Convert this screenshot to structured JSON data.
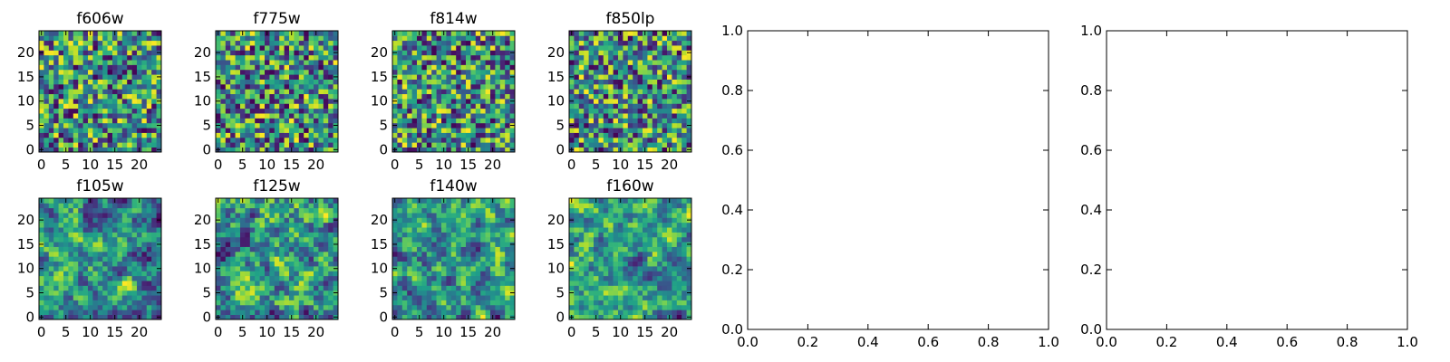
{
  "chart_data": [
    {
      "type": "heatmap",
      "title": "f606w",
      "xticks": [
        "0",
        "5",
        "10",
        "15",
        "20"
      ],
      "yticks": [
        "0",
        "5",
        "10",
        "15",
        "20"
      ],
      "xlim": [
        -0.5,
        24.5
      ],
      "ylim": [
        -0.5,
        24.5
      ],
      "shape": [
        25,
        25
      ],
      "colormap": "viridis",
      "seed": 11
    },
    {
      "type": "heatmap",
      "title": "f775w",
      "xticks": [
        "0",
        "5",
        "10",
        "15",
        "20"
      ],
      "yticks": [
        "0",
        "5",
        "10",
        "15",
        "20"
      ],
      "xlim": [
        -0.5,
        24.5
      ],
      "ylim": [
        -0.5,
        24.5
      ],
      "shape": [
        25,
        25
      ],
      "colormap": "viridis",
      "seed": 23
    },
    {
      "type": "heatmap",
      "title": "f814w",
      "xticks": [
        "0",
        "5",
        "10",
        "15",
        "20"
      ],
      "yticks": [
        "0",
        "5",
        "10",
        "15",
        "20"
      ],
      "xlim": [
        -0.5,
        24.5
      ],
      "ylim": [
        -0.5,
        24.5
      ],
      "shape": [
        25,
        25
      ],
      "colormap": "viridis",
      "seed": 37
    },
    {
      "type": "heatmap",
      "title": "f850lp",
      "xticks": [
        "0",
        "5",
        "10",
        "15",
        "20"
      ],
      "yticks": [
        "0",
        "5",
        "10",
        "15",
        "20"
      ],
      "xlim": [
        -0.5,
        24.5
      ],
      "ylim": [
        -0.5,
        24.5
      ],
      "shape": [
        25,
        25
      ],
      "colormap": "viridis",
      "seed": 41
    },
    {
      "type": "heatmap",
      "title": "f105w",
      "xticks": [
        "0",
        "5",
        "10",
        "15",
        "20"
      ],
      "yticks": [
        "0",
        "5",
        "10",
        "15",
        "20"
      ],
      "xlim": [
        -0.5,
        24.5
      ],
      "ylim": [
        -0.5,
        24.5
      ],
      "shape": [
        25,
        25
      ],
      "colormap": "viridis",
      "seed": 53
    },
    {
      "type": "heatmap",
      "title": "f125w",
      "xticks": [
        "0",
        "5",
        "10",
        "15",
        "20"
      ],
      "yticks": [
        "0",
        "5",
        "10",
        "15",
        "20"
      ],
      "xlim": [
        -0.5,
        24.5
      ],
      "ylim": [
        -0.5,
        24.5
      ],
      "shape": [
        25,
        25
      ],
      "colormap": "viridis",
      "seed": 67
    },
    {
      "type": "heatmap",
      "title": "f140w",
      "xticks": [
        "0",
        "5",
        "10",
        "15",
        "20"
      ],
      "yticks": [
        "0",
        "5",
        "10",
        "15",
        "20"
      ],
      "xlim": [
        -0.5,
        24.5
      ],
      "ylim": [
        -0.5,
        24.5
      ],
      "shape": [
        25,
        25
      ],
      "colormap": "viridis",
      "seed": 79
    },
    {
      "type": "heatmap",
      "title": "f160w",
      "xticks": [
        "0",
        "5",
        "10",
        "15",
        "20"
      ],
      "yticks": [
        "0",
        "5",
        "10",
        "15",
        "20"
      ],
      "xlim": [
        -0.5,
        24.5
      ],
      "ylim": [
        -0.5,
        24.5
      ],
      "shape": [
        25,
        25
      ],
      "colormap": "viridis",
      "seed": 83
    },
    {
      "type": "scatter",
      "title": "",
      "xlim": [
        0.0,
        1.0
      ],
      "ylim": [
        0.0,
        1.0
      ],
      "xticks": [
        "0.0",
        "0.2",
        "0.4",
        "0.6",
        "0.8",
        "1.0"
      ],
      "yticks": [
        "0.0",
        "0.2",
        "0.4",
        "0.6",
        "0.8",
        "1.0"
      ],
      "x": [],
      "y": []
    },
    {
      "type": "scatter",
      "title": "",
      "xlim": [
        0.0,
        1.0
      ],
      "ylim": [
        0.0,
        1.0
      ],
      "xticks": [
        "0.0",
        "0.2",
        "0.4",
        "0.6",
        "0.8",
        "1.0"
      ],
      "yticks": [
        "0.0",
        "0.2",
        "0.4",
        "0.6",
        "0.8",
        "1.0"
      ],
      "x": [],
      "y": []
    }
  ]
}
